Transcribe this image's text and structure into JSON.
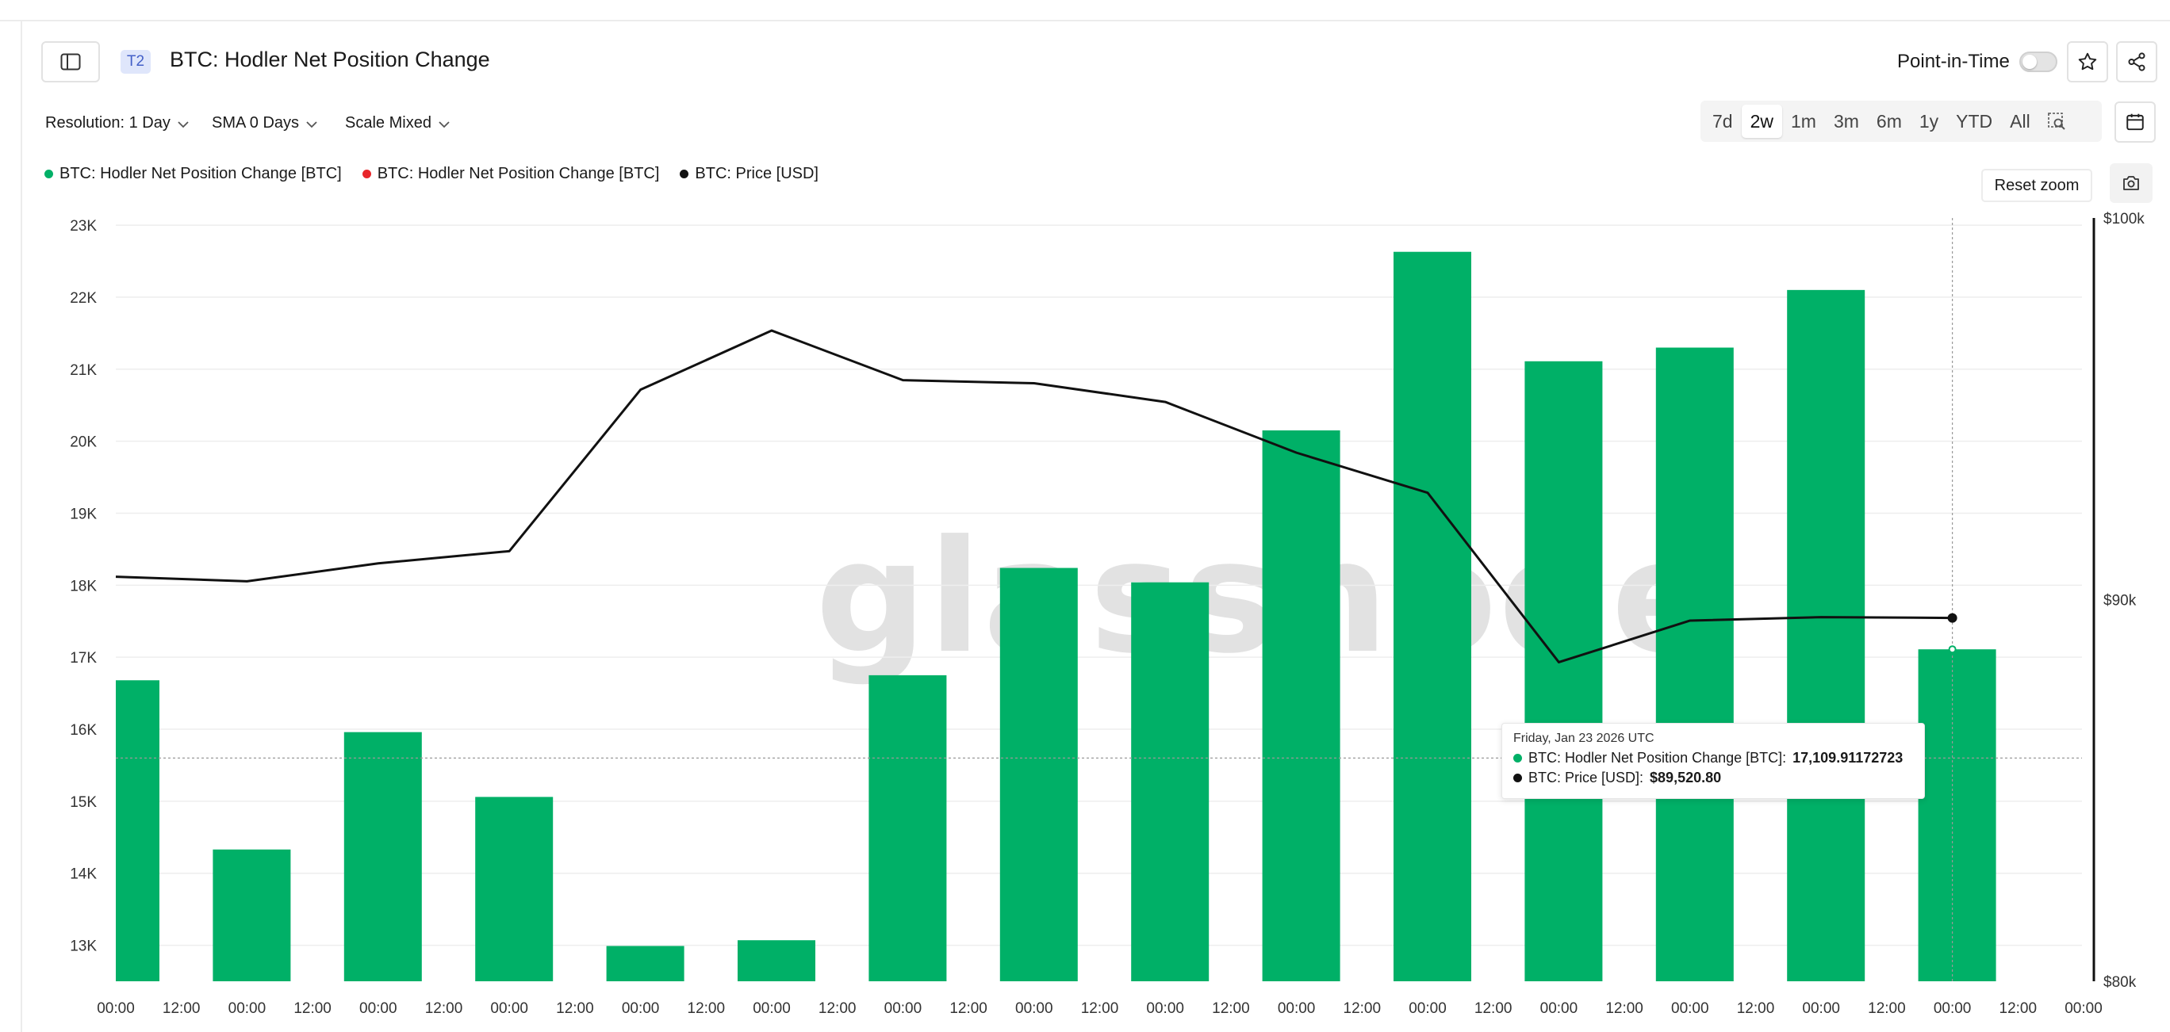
{
  "header": {
    "tier_badge": "T2",
    "title": "BTC: Hodler Net Position Change",
    "point_in_time_label": "Point-in-Time",
    "point_in_time_enabled": false
  },
  "controls": {
    "resolution": "Resolution: 1 Day",
    "sma": "SMA 0 Days",
    "scale": "Scale Mixed",
    "ranges": [
      "7d",
      "2w",
      "1m",
      "3m",
      "6m",
      "1y",
      "YTD",
      "All"
    ],
    "active_range": "2w",
    "reset_zoom": "Reset zoom"
  },
  "legend": [
    {
      "label": "BTC: Hodler Net Position Change [BTC]",
      "color": "#00b067"
    },
    {
      "label": "BTC: Hodler Net Position Change [BTC]",
      "color": "#e8262b"
    },
    {
      "label": "BTC: Price [USD]",
      "color": "#111111"
    }
  ],
  "watermark": "glassnode",
  "tooltip": {
    "date": "Friday, Jan 23 2026 UTC",
    "rows": [
      {
        "label": "BTC: Hodler Net Position Change [BTC]: ",
        "value": "17,109.91172723",
        "color": "#00b067"
      },
      {
        "label": "BTC: Price [USD]: ",
        "value": "$89,520.80",
        "color": "#111111"
      }
    ]
  },
  "chart_data": {
    "type": "bar",
    "categories": [
      "00:00",
      "00:00",
      "00:00",
      "00:00",
      "00:00",
      "00:00",
      "00:00",
      "00:00",
      "00:00",
      "00:00",
      "00:00",
      "00:00",
      "00:00",
      "00:00",
      "00:00"
    ],
    "x_tick_labels": [
      "00:00",
      "12:00",
      "00:00",
      "12:00",
      "00:00",
      "12:00",
      "00:00",
      "12:00",
      "00:00",
      "12:00",
      "00:00",
      "12:00",
      "00:00",
      "12:00",
      "00:00",
      "12:00",
      "00:00",
      "12:00",
      "00:00",
      "12:00",
      "00:00",
      "12:00",
      "00:00",
      "12:00",
      "00:00",
      "12:00",
      "00:00",
      "12:00",
      "00:00",
      "12:00",
      "00:00"
    ],
    "series": [
      {
        "name": "BTC: Hodler Net Position Change [BTC]",
        "type": "bar",
        "axis": "left",
        "color": "#00b067",
        "values": [
          16680,
          14330,
          15960,
          15060,
          12990,
          13070,
          16750,
          18240,
          18040,
          20150,
          22630,
          21110,
          21300,
          22100,
          17109.91
        ]
      },
      {
        "name": "BTC: Price [USD]",
        "type": "line",
        "axis": "right",
        "color": "#111111",
        "values": [
          90600,
          90480,
          90950,
          91270,
          95500,
          97050,
          95750,
          95670,
          95180,
          93850,
          92800,
          88360,
          89450,
          89540,
          89520.8
        ]
      }
    ],
    "left_axis": {
      "ticks": [
        "13K",
        "14K",
        "15K",
        "16K",
        "17K",
        "18K",
        "19K",
        "20K",
        "21K",
        "22K",
        "23K"
      ],
      "min": 12500,
      "max": 23100
    },
    "right_axis": {
      "ticks": [
        "$80k",
        "$90k",
        "$100k"
      ],
      "min": 80000,
      "max": 100000
    },
    "grid": true,
    "hovered_index": 14,
    "crosshair_y_value": 15600
  }
}
